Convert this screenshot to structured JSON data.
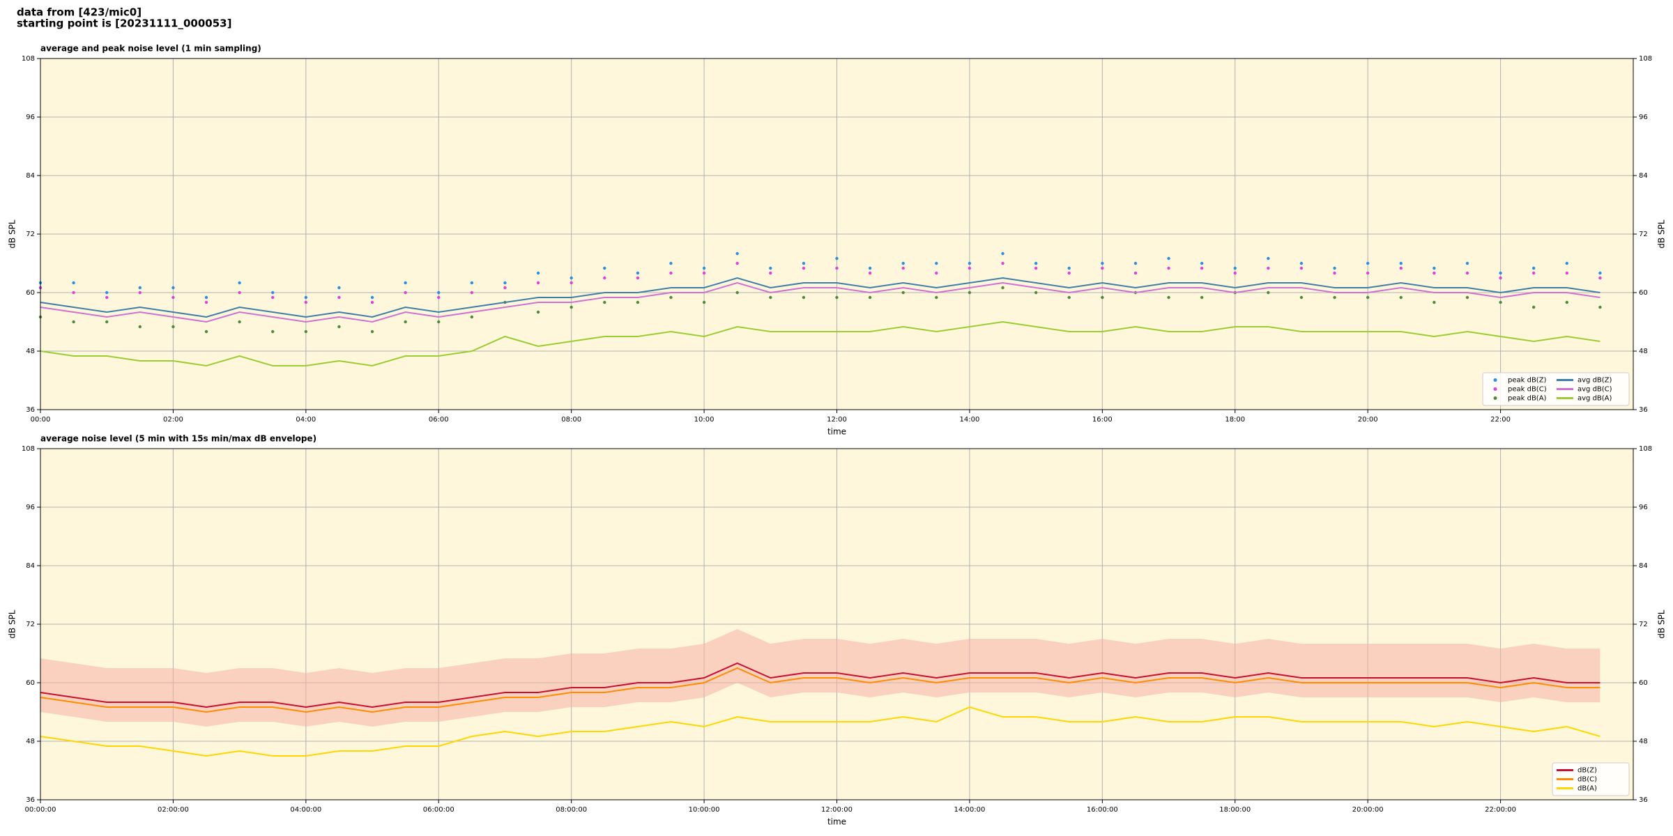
{
  "header": [
    "data from [423/mic0]",
    "starting point is [20231111_000053]"
  ],
  "chart_data": [
    {
      "type": "line",
      "title": "average and peak noise level (1 min sampling)",
      "xlabel": "time",
      "ylabel": "dB SPL",
      "xlim": [
        0,
        24
      ],
      "ylim": [
        36,
        108
      ],
      "yticks": [
        36,
        48,
        60,
        72,
        84,
        96,
        108
      ],
      "xticks": [
        {
          "value": 0,
          "label": "00:00"
        },
        {
          "value": 2,
          "label": "02:00"
        },
        {
          "value": 4,
          "label": "04:00"
        },
        {
          "value": 6,
          "label": "06:00"
        },
        {
          "value": 8,
          "label": "08:00"
        },
        {
          "value": 10,
          "label": "10:00"
        },
        {
          "value": 12,
          "label": "12:00"
        },
        {
          "value": 14,
          "label": "14:00"
        },
        {
          "value": 16,
          "label": "16:00"
        },
        {
          "value": 18,
          "label": "18:00"
        },
        {
          "value": 20,
          "label": "20:00"
        },
        {
          "value": 22,
          "label": "22:00"
        }
      ],
      "grid": true,
      "background": "#fff7dc",
      "legend": "lower right",
      "legend_ncol": 2,
      "x": [
        0,
        0.5,
        1,
        1.5,
        2,
        2.5,
        3,
        3.5,
        4,
        4.5,
        5,
        5.5,
        6,
        6.5,
        7,
        7.5,
        8,
        8.5,
        9,
        9.5,
        10,
        10.5,
        11,
        11.5,
        12,
        12.5,
        13,
        13.5,
        14,
        14.5,
        15,
        15.5,
        16,
        16.5,
        17,
        17.5,
        18,
        18.5,
        19,
        19.5,
        20,
        20.5,
        21,
        21.5,
        22,
        22.5,
        23,
        23.5
      ],
      "series": [
        {
          "name": "peak dB(Z)",
          "style": "markers",
          "color": "#2a8fe0",
          "values": [
            62,
            62,
            60,
            61,
            61,
            59,
            62,
            60,
            59,
            61,
            59,
            62,
            60,
            62,
            62,
            64,
            63,
            65,
            64,
            66,
            65,
            68,
            65,
            66,
            67,
            65,
            66,
            66,
            66,
            68,
            66,
            65,
            66,
            66,
            67,
            66,
            65,
            67,
            66,
            65,
            66,
            66,
            65,
            66,
            64,
            65,
            66,
            64
          ]
        },
        {
          "name": "peak dB(C)",
          "style": "markers",
          "color": "#e040d8",
          "values": [
            61,
            60,
            59,
            60,
            59,
            58,
            60,
            59,
            58,
            59,
            58,
            60,
            59,
            60,
            61,
            62,
            62,
            63,
            63,
            64,
            64,
            66,
            64,
            65,
            65,
            64,
            65,
            64,
            65,
            66,
            65,
            64,
            65,
            64,
            65,
            65,
            64,
            65,
            65,
            64,
            64,
            65,
            64,
            64,
            63,
            64,
            64,
            63
          ]
        },
        {
          "name": "peak dB(A)",
          "style": "markers",
          "color": "#4d8a3a",
          "values": [
            55,
            54,
            54,
            53,
            53,
            52,
            54,
            52,
            52,
            53,
            52,
            54,
            54,
            55,
            58,
            56,
            57,
            58,
            58,
            59,
            58,
            60,
            59,
            59,
            59,
            59,
            60,
            59,
            60,
            61,
            60,
            59,
            59,
            60,
            59,
            59,
            60,
            60,
            59,
            59,
            59,
            59,
            58,
            59,
            58,
            57,
            58,
            57
          ]
        },
        {
          "name": "avg dB(Z)",
          "style": "line",
          "color": "#3d7ea6",
          "values": [
            58,
            57,
            56,
            57,
            56,
            55,
            57,
            56,
            55,
            56,
            55,
            57,
            56,
            57,
            58,
            59,
            59,
            60,
            60,
            61,
            61,
            63,
            61,
            62,
            62,
            61,
            62,
            61,
            62,
            63,
            62,
            61,
            62,
            61,
            62,
            62,
            61,
            62,
            62,
            61,
            61,
            62,
            61,
            61,
            60,
            61,
            61,
            60
          ]
        },
        {
          "name": "avg dB(C)",
          "style": "line",
          "color": "#d070d0",
          "values": [
            57,
            56,
            55,
            56,
            55,
            54,
            56,
            55,
            54,
            55,
            54,
            56,
            55,
            56,
            57,
            58,
            58,
            59,
            59,
            60,
            60,
            62,
            60,
            61,
            61,
            60,
            61,
            60,
            61,
            62,
            61,
            60,
            61,
            60,
            61,
            61,
            60,
            61,
            61,
            60,
            60,
            61,
            60,
            60,
            59,
            60,
            60,
            59
          ]
        },
        {
          "name": "avg dB(A)",
          "style": "line",
          "color": "#9acd32",
          "values": [
            48,
            47,
            47,
            46,
            46,
            45,
            47,
            45,
            45,
            46,
            45,
            47,
            47,
            48,
            51,
            49,
            50,
            51,
            51,
            52,
            51,
            53,
            52,
            52,
            52,
            52,
            53,
            52,
            53,
            54,
            53,
            52,
            52,
            53,
            52,
            52,
            53,
            53,
            52,
            52,
            52,
            52,
            51,
            52,
            51,
            50,
            51,
            50
          ]
        }
      ]
    },
    {
      "type": "line",
      "title": "average noise level (5 min with 15s min/max dB envelope)",
      "xlabel": "time",
      "ylabel": "dB SPL",
      "xlim": [
        0,
        24
      ],
      "ylim": [
        36,
        108
      ],
      "yticks": [
        36,
        48,
        60,
        72,
        84,
        96,
        108
      ],
      "xticks": [
        {
          "value": 0,
          "label": "00:00:00"
        },
        {
          "value": 2,
          "label": "02:00:00"
        },
        {
          "value": 4,
          "label": "04:00:00"
        },
        {
          "value": 6,
          "label": "06:00:00"
        },
        {
          "value": 8,
          "label": "08:00:00"
        },
        {
          "value": 10,
          "label": "10:00:00"
        },
        {
          "value": 12,
          "label": "12:00:00"
        },
        {
          "value": 14,
          "label": "14:00:00"
        },
        {
          "value": 16,
          "label": "16:00:00"
        },
        {
          "value": 18,
          "label": "18:00:00"
        },
        {
          "value": 20,
          "label": "20:00:00"
        },
        {
          "value": 22,
          "label": "22:00:00"
        }
      ],
      "grid": true,
      "background": "#fff7dc",
      "legend": "lower right",
      "legend_ncol": 1,
      "x": [
        0,
        0.5,
        1,
        1.5,
        2,
        2.5,
        3,
        3.5,
        4,
        4.5,
        5,
        5.5,
        6,
        6.5,
        7,
        7.5,
        8,
        8.5,
        9,
        9.5,
        10,
        10.5,
        11,
        11.5,
        12,
        12.5,
        13,
        13.5,
        14,
        14.5,
        15,
        15.5,
        16,
        16.5,
        17,
        17.5,
        18,
        18.5,
        19,
        19.5,
        20,
        20.5,
        21,
        21.5,
        22,
        22.5,
        23,
        23.5
      ],
      "envelope": {
        "color": "#f5b3a8",
        "lower": [
          54,
          53,
          52,
          52,
          52,
          51,
          52,
          52,
          51,
          52,
          51,
          52,
          52,
          53,
          54,
          54,
          55,
          55,
          56,
          56,
          57,
          60,
          57,
          58,
          58,
          57,
          58,
          57,
          58,
          58,
          58,
          57,
          58,
          57,
          58,
          58,
          57,
          58,
          57,
          57,
          57,
          57,
          57,
          57,
          56,
          57,
          56,
          56
        ],
        "upper": [
          65,
          64,
          63,
          63,
          63,
          62,
          63,
          63,
          62,
          63,
          62,
          63,
          63,
          64,
          65,
          65,
          66,
          66,
          67,
          67,
          68,
          71,
          68,
          69,
          69,
          68,
          69,
          68,
          69,
          69,
          69,
          68,
          69,
          68,
          69,
          69,
          68,
          69,
          68,
          68,
          68,
          68,
          68,
          68,
          67,
          68,
          67,
          67
        ]
      },
      "series": [
        {
          "name": "dB(Z)",
          "style": "line",
          "color": "#c8102e",
          "values": [
            58,
            57,
            56,
            56,
            56,
            55,
            56,
            56,
            55,
            56,
            55,
            56,
            56,
            57,
            58,
            58,
            59,
            59,
            60,
            60,
            61,
            64,
            61,
            62,
            62,
            61,
            62,
            61,
            62,
            62,
            62,
            61,
            62,
            61,
            62,
            62,
            61,
            62,
            61,
            61,
            61,
            61,
            61,
            61,
            60,
            61,
            60,
            60
          ]
        },
        {
          "name": "dB(C)",
          "style": "line",
          "color": "#ff8c00",
          "values": [
            57,
            56,
            55,
            55,
            55,
            54,
            55,
            55,
            54,
            55,
            54,
            55,
            55,
            56,
            57,
            57,
            58,
            58,
            59,
            59,
            60,
            63,
            60,
            61,
            61,
            60,
            61,
            60,
            61,
            61,
            61,
            60,
            61,
            60,
            61,
            61,
            60,
            61,
            60,
            60,
            60,
            60,
            60,
            60,
            59,
            60,
            59,
            59
          ]
        },
        {
          "name": "dB(A)",
          "style": "line",
          "color": "#ffd700",
          "values": [
            49,
            48,
            47,
            47,
            46,
            45,
            46,
            45,
            45,
            46,
            46,
            47,
            47,
            49,
            50,
            49,
            50,
            50,
            51,
            52,
            51,
            53,
            52,
            52,
            52,
            52,
            53,
            52,
            55,
            53,
            53,
            52,
            52,
            53,
            52,
            52,
            53,
            53,
            52,
            52,
            52,
            52,
            51,
            52,
            51,
            50,
            51,
            49
          ]
        }
      ]
    }
  ]
}
